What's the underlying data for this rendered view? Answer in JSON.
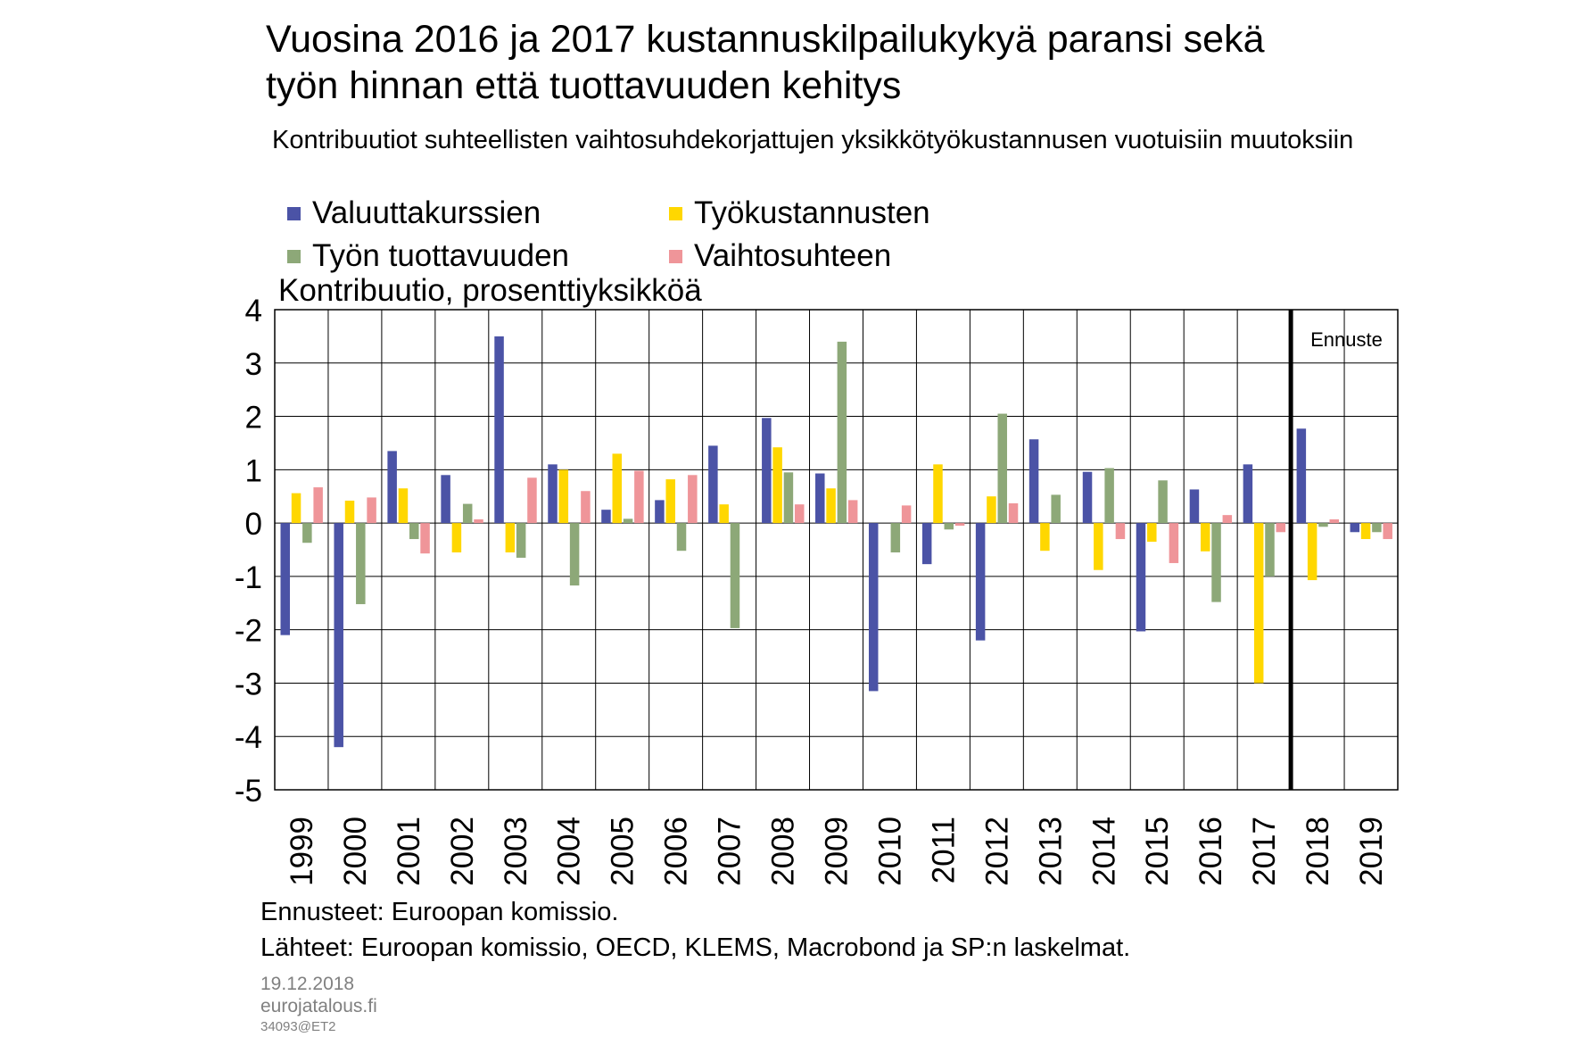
{
  "title_lines": [
    "Vuosina 2016 ja 2017 kustannuskilpailukykyä paransi sekä",
    "työn hinnan että tuottavuuden kehitys"
  ],
  "subtitle": "Kontribuutiot suhteellisten vaihtosuhdekorjattujen yksikkötyökustannusen vuotuisiin muutoksiin",
  "notes": [
    "Ennusteet: Euroopan komissio.",
    "Lähteet: Euroopan komissio, OECD, KLEMS, Macrobond ja SP:n laskelmat."
  ],
  "meta": {
    "date": "19.12.2018",
    "site": "eurojatalous.fi",
    "code": "34093@ET2"
  },
  "chart_data": {
    "type": "bar",
    "ylabel": "Kontribuutio, prosenttiyksikköä",
    "ylim": [
      -5,
      4
    ],
    "yticks": [
      4,
      3,
      2,
      1,
      0,
      -1,
      -2,
      -3,
      -4,
      -5
    ],
    "grid": true,
    "legend_position": "top-left",
    "forecast_label": "Ennuste",
    "forecast_from": "2018",
    "categories": [
      "1999",
      "2000",
      "2001",
      "2002",
      "2003",
      "2004",
      "2005",
      "2006",
      "2007",
      "2008",
      "2009",
      "2010",
      "2011",
      "2012",
      "2013",
      "2014",
      "2015",
      "2016",
      "2017",
      "2018",
      "2019"
    ],
    "series": [
      {
        "name": "Valuuttakurssien",
        "color": "#4b53a6",
        "values": [
          -2.1,
          -4.2,
          1.35,
          0.9,
          3.5,
          1.1,
          0.25,
          0.43,
          1.45,
          1.97,
          0.93,
          -3.15,
          -0.77,
          -2.2,
          1.57,
          0.96,
          -2.03,
          0.63,
          1.1,
          1.77,
          -0.17
        ]
      },
      {
        "name": "Työkustannusten",
        "color": "#ffd700",
        "values": [
          0.56,
          0.42,
          0.65,
          -0.55,
          -0.55,
          1.0,
          1.3,
          0.82,
          0.35,
          1.42,
          0.65,
          0.0,
          1.1,
          0.5,
          -0.52,
          -0.88,
          -0.35,
          -0.53,
          -3.0,
          -1.07,
          -0.3
        ]
      },
      {
        "name": "Työn tuottavuuden",
        "color": "#8da878",
        "values": [
          -0.37,
          -1.52,
          -0.3,
          0.36,
          -0.65,
          -1.17,
          0.08,
          -0.52,
          -1.97,
          0.95,
          3.4,
          -0.55,
          -0.12,
          2.05,
          0.53,
          1.03,
          0.8,
          -1.48,
          -1.0,
          -0.07,
          -0.17
        ]
      },
      {
        "name": "Vaihtosuhteen",
        "color": "#ef9599",
        "values": [
          0.67,
          0.48,
          -0.57,
          0.07,
          0.85,
          0.6,
          0.98,
          0.9,
          0.0,
          0.35,
          0.43,
          0.33,
          -0.05,
          0.37,
          0.0,
          -0.3,
          -0.75,
          0.15,
          -0.17,
          0.07,
          -0.3
        ]
      }
    ]
  }
}
